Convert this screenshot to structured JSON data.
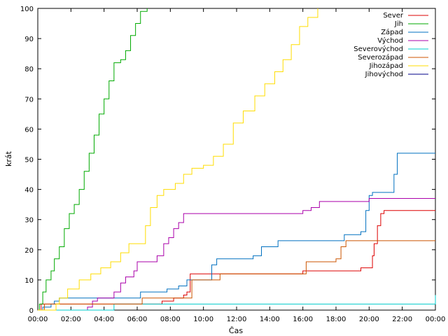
{
  "chart_data": {
    "type": "line",
    "xlabel": "Čas",
    "ylabel": "krát",
    "xlim": [
      0,
      24
    ],
    "ylim": [
      0,
      100
    ],
    "x_ticks": [
      "00:00",
      "02:00",
      "04:00",
      "06:00",
      "08:00",
      "10:00",
      "12:00",
      "14:00",
      "16:00",
      "18:00",
      "20:00",
      "22:00",
      "00:00"
    ],
    "y_ticks": [
      0,
      10,
      20,
      30,
      40,
      50,
      60,
      70,
      80,
      90,
      100
    ],
    "legend_position": "top-right",
    "grid": false,
    "series": [
      {
        "name": "Sever",
        "color": "#dd0000",
        "points": [
          [
            0,
            0
          ],
          [
            0.1,
            0
          ],
          [
            0.2,
            2
          ],
          [
            1.0,
            2
          ],
          [
            1.5,
            2
          ],
          [
            3.0,
            2
          ],
          [
            5.0,
            2
          ],
          [
            7.0,
            2
          ],
          [
            7.5,
            3
          ],
          [
            7.8,
            3
          ],
          [
            8.2,
            4
          ],
          [
            8.8,
            5
          ],
          [
            9.0,
            6
          ],
          [
            9.2,
            12
          ],
          [
            10.0,
            12
          ],
          [
            12.0,
            12
          ],
          [
            15.8,
            12
          ],
          [
            16.0,
            13
          ],
          [
            19.3,
            13
          ],
          [
            19.5,
            14
          ],
          [
            20.1,
            14
          ],
          [
            20.2,
            18
          ],
          [
            20.3,
            22
          ],
          [
            20.5,
            28
          ],
          [
            20.7,
            32
          ],
          [
            20.9,
            33
          ],
          [
            24.0,
            33
          ]
        ]
      },
      {
        "name": "Jih",
        "color": "#00aa00",
        "points": [
          [
            0,
            0
          ],
          [
            0.1,
            2
          ],
          [
            0.3,
            6
          ],
          [
            0.5,
            10
          ],
          [
            0.8,
            13
          ],
          [
            1.0,
            17
          ],
          [
            1.3,
            21
          ],
          [
            1.6,
            27
          ],
          [
            1.9,
            32
          ],
          [
            2.2,
            35
          ],
          [
            2.5,
            40
          ],
          [
            2.8,
            46
          ],
          [
            3.1,
            52
          ],
          [
            3.4,
            58
          ],
          [
            3.7,
            65
          ],
          [
            4.0,
            70
          ],
          [
            4.3,
            76
          ],
          [
            4.6,
            82
          ],
          [
            5.0,
            83
          ],
          [
            5.3,
            86
          ],
          [
            5.6,
            91
          ],
          [
            5.9,
            95
          ],
          [
            6.2,
            99
          ],
          [
            6.6,
            100
          ]
        ]
      },
      {
        "name": "Západ",
        "color": "#0070c0",
        "points": [
          [
            0,
            0
          ],
          [
            0.3,
            1
          ],
          [
            0.8,
            2
          ],
          [
            1.0,
            3
          ],
          [
            1.3,
            4
          ],
          [
            6.0,
            4
          ],
          [
            6.2,
            6
          ],
          [
            7.5,
            6
          ],
          [
            7.8,
            7
          ],
          [
            8.5,
            8
          ],
          [
            9.0,
            10
          ],
          [
            10.2,
            10
          ],
          [
            10.5,
            15
          ],
          [
            10.8,
            17
          ],
          [
            12.0,
            17
          ],
          [
            13.0,
            18
          ],
          [
            13.5,
            21
          ],
          [
            14.0,
            21
          ],
          [
            14.5,
            23
          ],
          [
            18.0,
            23
          ],
          [
            18.5,
            25
          ],
          [
            19.5,
            26
          ],
          [
            19.8,
            33
          ],
          [
            20.0,
            38
          ],
          [
            20.2,
            39
          ],
          [
            21.2,
            39
          ],
          [
            21.5,
            45
          ],
          [
            21.7,
            52
          ],
          [
            24.0,
            52
          ]
        ]
      },
      {
        "name": "Východ",
        "color": "#aa00aa",
        "points": [
          [
            0,
            0
          ],
          [
            3.0,
            1
          ],
          [
            3.3,
            3
          ],
          [
            3.6,
            4
          ],
          [
            4.2,
            4
          ],
          [
            4.6,
            6
          ],
          [
            5.0,
            9
          ],
          [
            5.3,
            11
          ],
          [
            5.8,
            13
          ],
          [
            6.0,
            16
          ],
          [
            6.8,
            16
          ],
          [
            7.2,
            18
          ],
          [
            7.6,
            22
          ],
          [
            7.9,
            24
          ],
          [
            8.2,
            27
          ],
          [
            8.5,
            29
          ],
          [
            8.8,
            32
          ],
          [
            15.8,
            32
          ],
          [
            16.0,
            33
          ],
          [
            16.5,
            34
          ],
          [
            17.0,
            36
          ],
          [
            19.0,
            36
          ],
          [
            20.0,
            37
          ],
          [
            24.0,
            37
          ]
        ]
      },
      {
        "name": "Severovýchod",
        "color": "#00cccc",
        "points": [
          [
            0,
            0
          ],
          [
            4.5,
            0
          ],
          [
            4.6,
            2
          ],
          [
            24.0,
            2
          ],
          [
            24.0,
            5
          ]
        ]
      },
      {
        "name": "Severozápad",
        "color": "#cc5500",
        "points": [
          [
            0,
            0
          ],
          [
            0.4,
            2
          ],
          [
            6.0,
            2
          ],
          [
            6.3,
            4
          ],
          [
            9.0,
            4
          ],
          [
            9.3,
            10
          ],
          [
            10.8,
            10
          ],
          [
            11.0,
            12
          ],
          [
            15.8,
            12
          ],
          [
            16.2,
            16
          ],
          [
            18.0,
            17
          ],
          [
            18.3,
            21
          ],
          [
            18.6,
            23
          ],
          [
            24.0,
            23
          ]
        ]
      },
      {
        "name": "Jihozápad",
        "color": "#ffdd00",
        "points": [
          [
            0,
            0
          ],
          [
            1.1,
            2
          ],
          [
            1.3,
            4
          ],
          [
            1.8,
            7
          ],
          [
            2.5,
            10
          ],
          [
            3.2,
            12
          ],
          [
            3.8,
            14
          ],
          [
            4.4,
            16
          ],
          [
            5.0,
            19
          ],
          [
            5.5,
            22
          ],
          [
            6.3,
            22
          ],
          [
            6.5,
            28
          ],
          [
            6.8,
            34
          ],
          [
            7.2,
            38
          ],
          [
            7.6,
            40
          ],
          [
            8.3,
            42
          ],
          [
            8.8,
            45
          ],
          [
            9.3,
            47
          ],
          [
            10.0,
            48
          ],
          [
            10.6,
            51
          ],
          [
            11.2,
            55
          ],
          [
            11.8,
            62
          ],
          [
            12.4,
            66
          ],
          [
            13.1,
            71
          ],
          [
            13.7,
            75
          ],
          [
            14.3,
            79
          ],
          [
            14.8,
            83
          ],
          [
            15.3,
            88
          ],
          [
            15.8,
            94
          ],
          [
            16.3,
            97
          ],
          [
            16.9,
            100
          ]
        ]
      },
      {
        "name": "Jihovýchod",
        "color": "#000088",
        "points": []
      }
    ]
  }
}
